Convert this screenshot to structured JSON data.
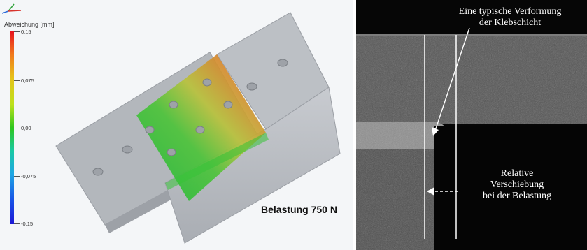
{
  "left_panel": {
    "legend": {
      "title": "Abweichung [mm]",
      "ticks": [
        "0,15",
        "0,075",
        "0,00",
        "-0,075",
        "-0,15"
      ],
      "colors": {
        "max": "#e8141e",
        "upper": "#e6c21a",
        "zero": "#2ec61d",
        "lower": "#1ea6e4",
        "min": "#1c18d6"
      }
    },
    "load_label": "Belastung 750 N"
  },
  "right_panel": {
    "annotation_top_line1": "Eine typische Verformung",
    "annotation_top_line2": "der Klebschicht",
    "annotation_bottom_line1": "Relative",
    "annotation_bottom_line2": "Verschiebung",
    "annotation_bottom_line3": "bei der Belastung"
  }
}
